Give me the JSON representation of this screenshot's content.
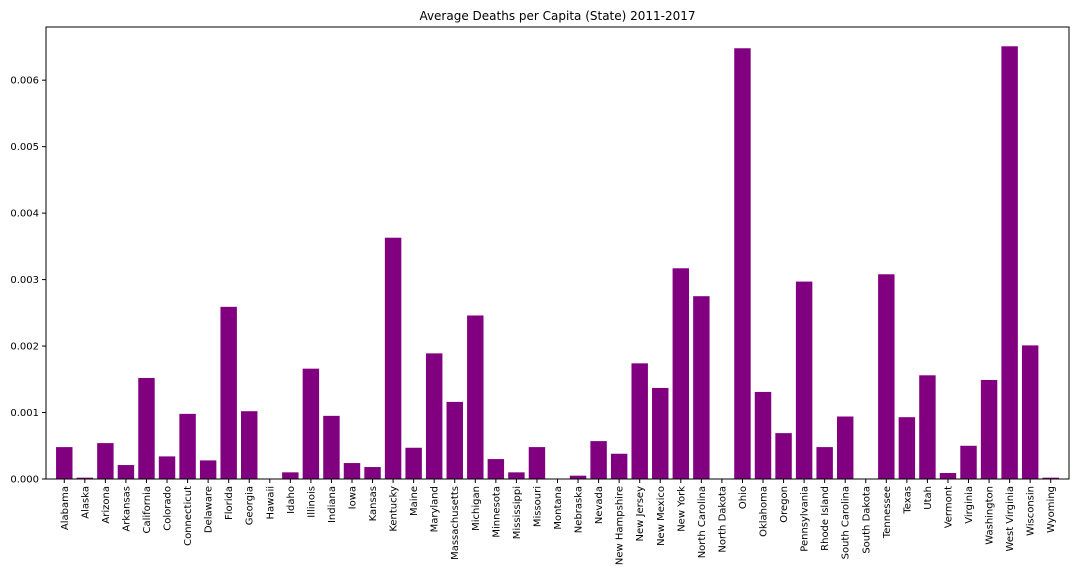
{
  "chart_data": {
    "type": "bar",
    "title": "Average Deaths per Capita (State) 2011-2017",
    "xlabel": "",
    "ylabel": "",
    "ylim": [
      0,
      0.0068
    ],
    "yticks": [
      "0.000",
      "0.001",
      "0.002",
      "0.003",
      "0.004",
      "0.005",
      "0.006"
    ],
    "bar_color": "#800080",
    "grid": false,
    "categories": [
      "Alabama",
      "Alaska",
      "Arizona",
      "Arkansas",
      "California",
      "Colorado",
      "Connecticut",
      "Delaware",
      "Florida",
      "Georgia",
      "Hawaii",
      "Idaho",
      "Illinois",
      "Indiana",
      "Iowa",
      "Kansas",
      "Kentucky",
      "Maine",
      "Maryland",
      "Massachusetts",
      "Michigan",
      "Minnesota",
      "Mississippi",
      "Missouri",
      "Montana",
      "Nebraska",
      "Nevada",
      "New Hampshire",
      "New Jersey",
      "New Mexico",
      "New York",
      "North Carolina",
      "North Dakota",
      "Ohio",
      "Oklahoma",
      "Oregon",
      "Pennsylvania",
      "Rhode Island",
      "South Carolina",
      "South Dakota",
      "Tennessee",
      "Texas",
      "Utah",
      "Vermont",
      "Virginia",
      "Washington",
      "West Virginia",
      "Wisconsin",
      "Wyoming"
    ],
    "values": [
      0.00048,
      2e-05,
      0.00054,
      0.00021,
      0.00152,
      0.00034,
      0.00098,
      0.00028,
      0.00259,
      0.00102,
      0.0,
      0.0001,
      0.00166,
      0.00095,
      0.00024,
      0.00018,
      0.00363,
      0.00047,
      0.00189,
      0.00116,
      0.00246,
      0.0003,
      0.0001,
      0.00048,
      0.0,
      5e-05,
      0.00057,
      0.00038,
      0.00174,
      0.00137,
      0.00317,
      0.00275,
      0.0,
      0.00648,
      0.00131,
      0.00069,
      0.00297,
      0.00048,
      0.00094,
      0.0,
      0.00308,
      0.00093,
      0.00156,
      9e-05,
      0.0005,
      0.00149,
      0.00651,
      0.00201,
      2e-05
    ]
  }
}
